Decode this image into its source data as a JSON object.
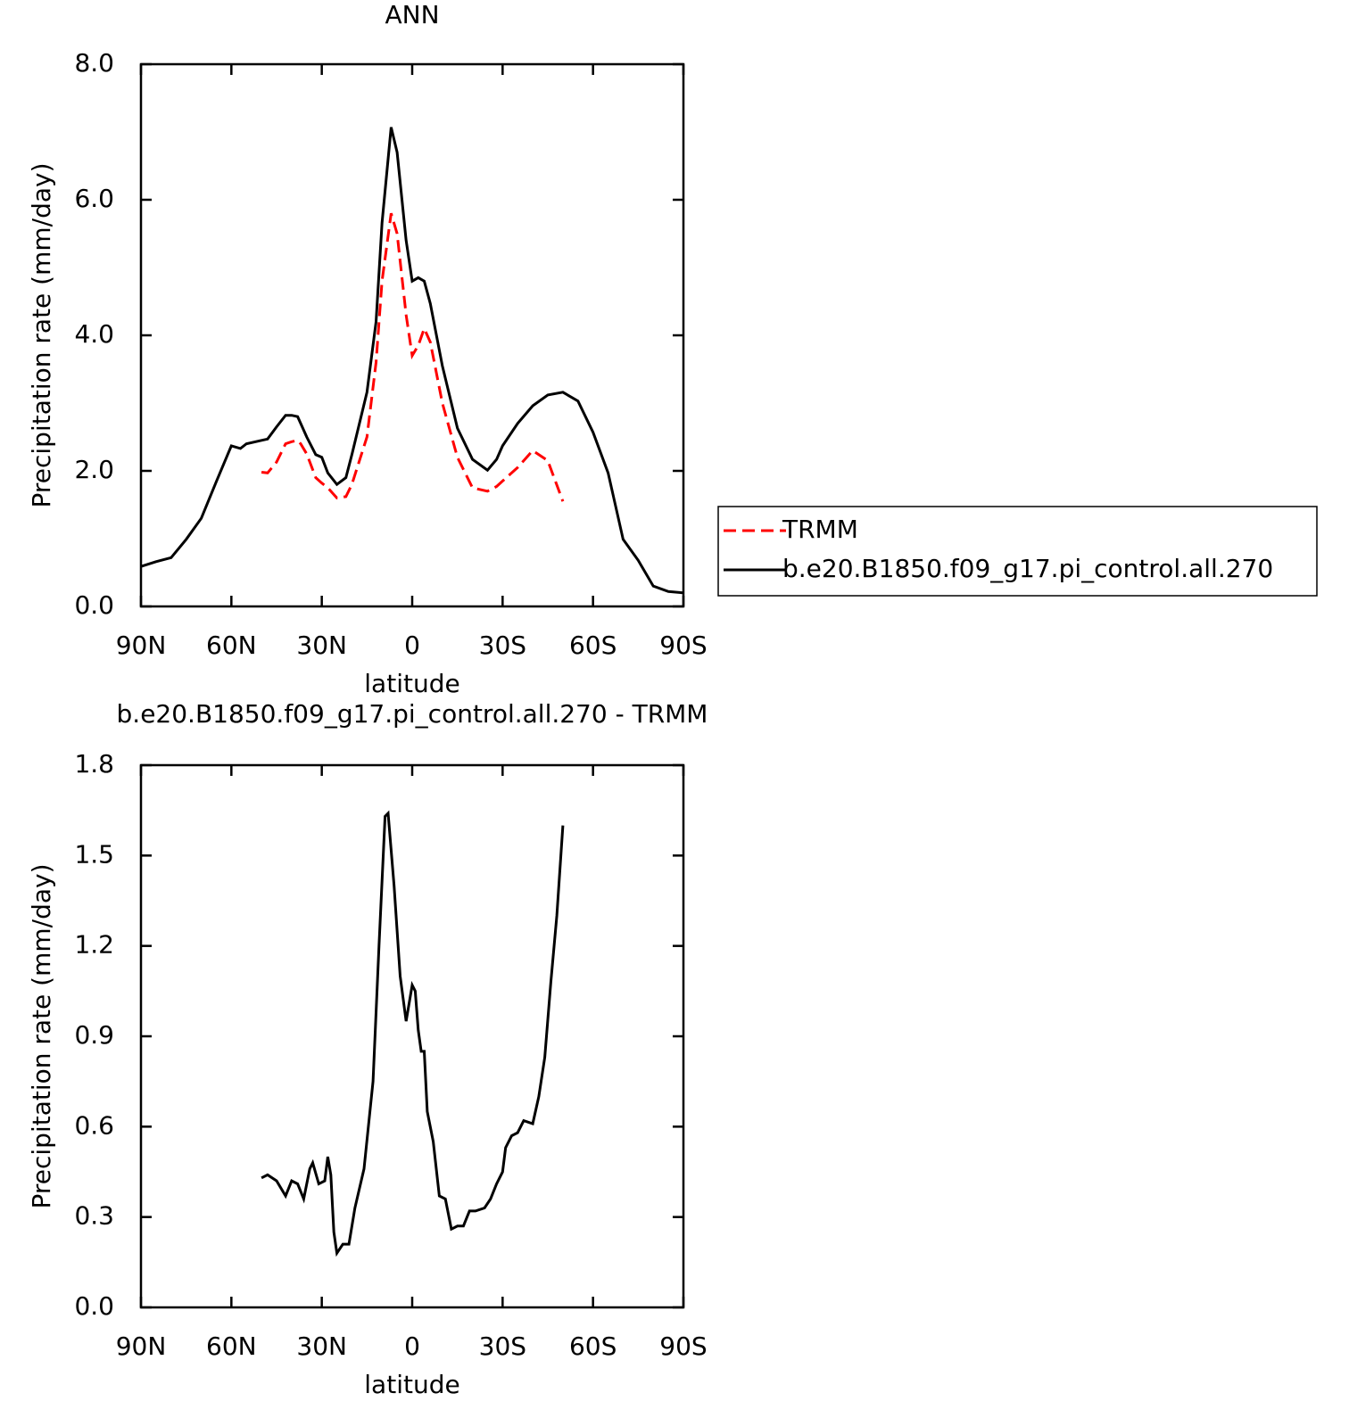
{
  "chart_data": [
    {
      "type": "line",
      "title": "ANN",
      "xlabel": "latitude",
      "ylabel": "Precipitation rate (mm/day)",
      "x": [
        90,
        85,
        80,
        75,
        70,
        65,
        60,
        57,
        55,
        50,
        48,
        45,
        42,
        40,
        38,
        37,
        35,
        32,
        30,
        28,
        25,
        22,
        20,
        15,
        12,
        10,
        7,
        5,
        2,
        0,
        -2,
        -4,
        -6,
        -10,
        -15,
        -20,
        -25,
        -28,
        -30,
        -35,
        -40,
        -45,
        -50,
        -55,
        -60,
        -65,
        -70,
        -75,
        -80,
        -85,
        -90
      ],
      "series": [
        {
          "name": "TRMM",
          "color": "#ff0000",
          "dash": true,
          "values": [
            null,
            null,
            null,
            null,
            null,
            null,
            null,
            null,
            null,
            1.98,
            1.97,
            2.13,
            2.4,
            2.43,
            2.45,
            2.4,
            2.25,
            1.9,
            1.82,
            1.75,
            1.6,
            1.62,
            1.8,
            2.5,
            3.6,
            4.8,
            5.8,
            5.5,
            4.3,
            3.7,
            3.85,
            4.1,
            3.9,
            3.0,
            2.2,
            1.75,
            1.7,
            1.77,
            1.85,
            2.05,
            2.3,
            2.15,
            1.55,
            null,
            null,
            null,
            null,
            null,
            null,
            null,
            null
          ]
        },
        {
          "name": "b.e20.B1850.f09_g17.pi_control.all.270",
          "color": "#000000",
          "dash": false,
          "values": [
            0.59,
            0.66,
            0.72,
            0.99,
            1.3,
            1.84,
            2.37,
            2.33,
            2.4,
            2.45,
            2.47,
            2.65,
            2.82,
            2.82,
            2.8,
            2.7,
            2.5,
            2.24,
            2.2,
            1.97,
            1.8,
            1.9,
            2.24,
            3.16,
            4.2,
            5.66,
            7.07,
            6.7,
            5.4,
            4.8,
            4.85,
            4.8,
            4.47,
            3.55,
            2.63,
            2.17,
            2.01,
            2.17,
            2.37,
            2.7,
            2.96,
            3.12,
            3.16,
            3.03,
            2.57,
            1.97,
            0.99,
            0.68,
            0.3,
            0.22,
            0.2
          ]
        }
      ],
      "xlim": [
        90,
        -90
      ],
      "xticks": [
        {
          "value": 90,
          "label": "90N"
        },
        {
          "value": 60,
          "label": "60N"
        },
        {
          "value": 30,
          "label": "30N"
        },
        0,
        {
          "value": -30,
          "label": "30S"
        },
        {
          "value": -60,
          "label": "60S"
        },
        {
          "value": -90,
          "label": "90S"
        }
      ],
      "ylim": [
        0,
        8
      ],
      "yticks": [
        {
          "value": 0,
          "label": "0.0"
        },
        {
          "value": 2,
          "label": "2.0"
        },
        {
          "value": 4,
          "label": "4.0"
        },
        {
          "value": 6,
          "label": "6.0"
        },
        {
          "value": 8,
          "label": "8.0"
        }
      ],
      "legend": "right"
    },
    {
      "type": "line",
      "title": "b.e20.B1850.f09_g17.pi_control.all.270 - TRMM",
      "xlabel": "latitude",
      "ylabel": "Precipitation rate (mm/day)",
      "x": [
        50,
        48,
        45,
        42,
        40,
        38,
        36,
        34,
        33,
        31,
        29,
        28,
        27,
        26,
        25,
        23,
        21,
        19,
        16,
        13,
        11,
        9,
        8,
        6,
        4,
        2,
        0,
        -1,
        -2,
        -3,
        -4,
        -5,
        -7,
        -9,
        -11,
        -13,
        -15,
        -17,
        -19,
        -21,
        -24,
        -26,
        -28,
        -30,
        -31,
        -33,
        -35,
        -37,
        -40,
        -42,
        -44,
        -46,
        -48,
        -50
      ],
      "series": [
        {
          "color": "#000000",
          "dash": false,
          "values": [
            0.43,
            0.44,
            0.42,
            0.37,
            0.42,
            0.41,
            0.36,
            0.46,
            0.48,
            0.41,
            0.42,
            0.5,
            0.44,
            0.25,
            0.18,
            0.21,
            0.21,
            0.33,
            0.46,
            0.75,
            1.2,
            1.63,
            1.64,
            1.4,
            1.1,
            0.95,
            1.07,
            1.05,
            0.92,
            0.85,
            0.85,
            0.65,
            0.55,
            0.37,
            0.36,
            0.26,
            0.27,
            0.27,
            0.32,
            0.32,
            0.33,
            0.36,
            0.41,
            0.45,
            0.53,
            0.57,
            0.58,
            0.62,
            0.61,
            0.7,
            0.83,
            1.08,
            1.3,
            1.6
          ]
        }
      ],
      "xlim": [
        90,
        -90
      ],
      "xticks": [
        {
          "value": 90,
          "label": "90N"
        },
        {
          "value": 60,
          "label": "60N"
        },
        {
          "value": 30,
          "label": "30N"
        },
        0,
        {
          "value": -30,
          "label": "30S"
        },
        {
          "value": -60,
          "label": "60S"
        },
        {
          "value": -90,
          "label": "90S"
        }
      ],
      "ylim": [
        0,
        1.8
      ],
      "yticks": [
        {
          "value": 0,
          "label": "0.0"
        },
        0.3,
        0.6,
        0.9,
        1.2,
        1.5,
        1.8
      ]
    }
  ]
}
